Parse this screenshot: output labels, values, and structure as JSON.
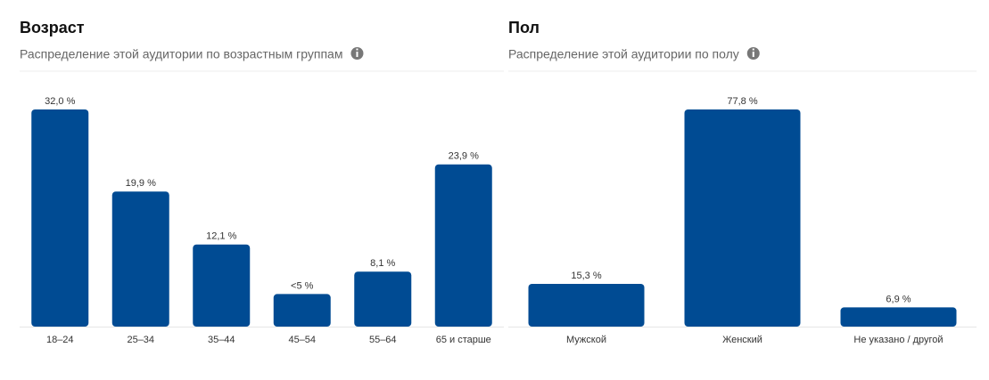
{
  "chart_data": [
    {
      "type": "bar",
      "title": "Возраст",
      "subtitle": "Распределение этой аудитории по возрастным группам",
      "categories": [
        "18–24",
        "25–34",
        "35–44",
        "45–54",
        "55–64",
        "65 и старше"
      ],
      "values": [
        32.0,
        19.9,
        12.1,
        4.8,
        8.1,
        23.9
      ],
      "value_labels": [
        "32,0 %",
        "19,9 %",
        "12,1 %",
        "<5 %",
        "8,1 %",
        "23,9 %"
      ],
      "color": "#004b93"
    },
    {
      "type": "bar",
      "title": "Пол",
      "subtitle": "Распределение этой аудитории по полу",
      "categories": [
        "Мужской",
        "Женский",
        "Не указано / другой"
      ],
      "values": [
        15.3,
        77.8,
        6.9
      ],
      "value_labels": [
        "15,3 %",
        "77,8 %",
        "6,9 %"
      ],
      "color": "#004b93"
    }
  ]
}
